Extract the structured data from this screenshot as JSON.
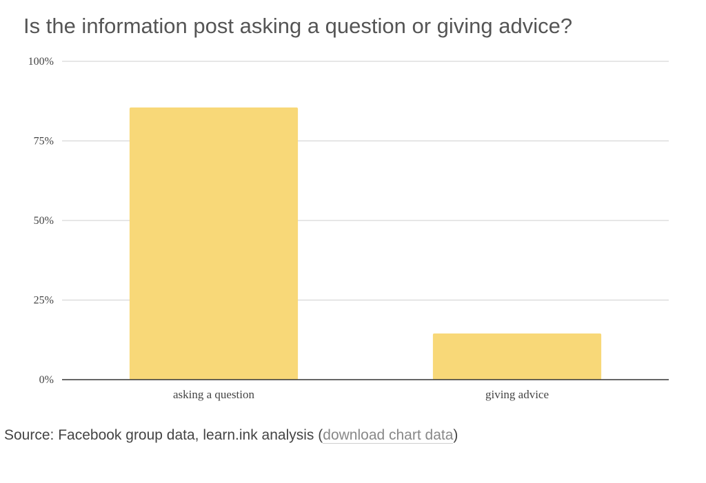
{
  "chart_data": {
    "type": "bar",
    "title": "Is the information post asking a question or giving advice?",
    "categories": [
      "asking a question",
      "giving advice"
    ],
    "values": [
      85.5,
      14.5
    ],
    "ylim": [
      0,
      100
    ],
    "yticks": [
      0,
      25,
      50,
      75,
      100
    ],
    "ytick_labels": [
      "0%",
      "25%",
      "50%",
      "75%",
      "100%"
    ],
    "xlabel": "",
    "ylabel": "",
    "grid": true,
    "bar_color": "#f8d878"
  },
  "source": {
    "prefix": "Source: Facebook group data, learn.ink analysis (",
    "link_label": "download chart data",
    "suffix": ")"
  }
}
